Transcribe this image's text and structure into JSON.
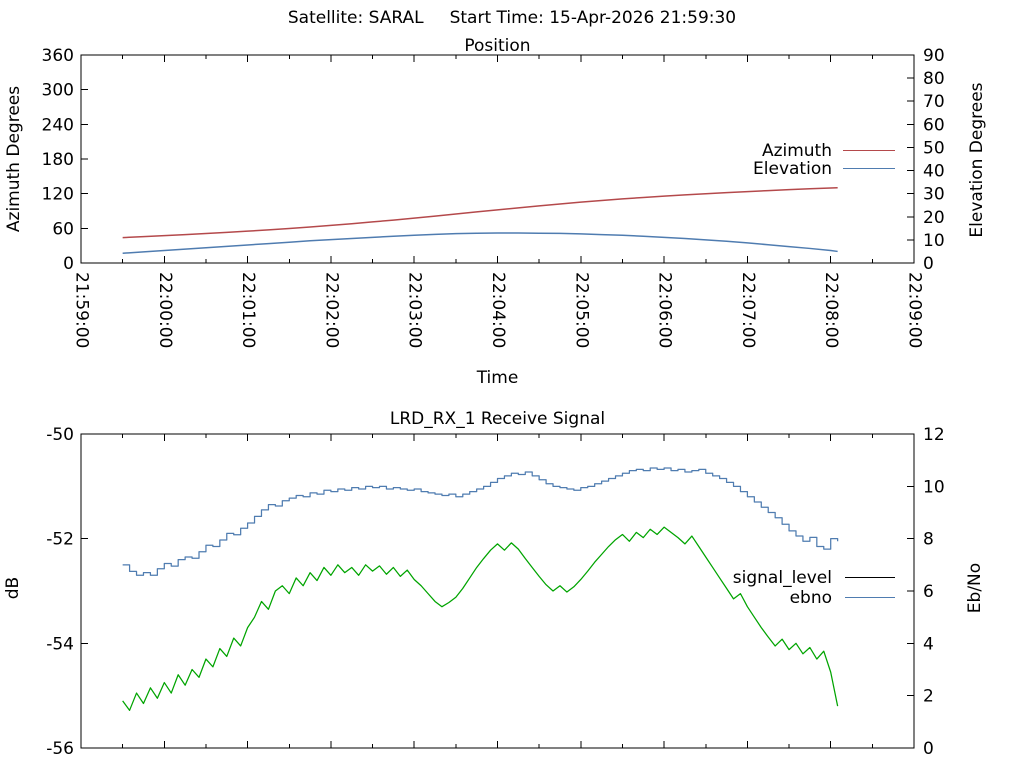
{
  "header": {
    "satellite": "Satellite: SARAL",
    "start_time": "Start Time: 15-Apr-2026 21:59:30"
  },
  "colors": {
    "azimuth": "#b4494b",
    "elevation": "#4f7cb0",
    "signal_level": "#00a400",
    "signal_level_legend": "#000000",
    "ebno": "#4f7cb0",
    "axis": "#000000"
  },
  "chart_data": [
    {
      "type": "line",
      "title": "Position",
      "xlabel": "Time",
      "ylabel": "Azimuth Degrees",
      "y2label": "Elevation Degrees",
      "x_unit": "seconds since 21:59:00",
      "xlim": [
        0,
        600
      ],
      "xtick_interval": 60,
      "xtick_labels": [
        "21:59:00",
        "22:00:00",
        "22:01:00",
        "22:02:00",
        "22:03:00",
        "22:04:00",
        "22:05:00",
        "22:06:00",
        "22:07:00",
        "22:08:00",
        "22:09:00"
      ],
      "show_xtick_labels": true,
      "ylim": [
        0,
        360
      ],
      "yticks": [
        0,
        60,
        120,
        180,
        240,
        300,
        360
      ],
      "y2lim": [
        0,
        90
      ],
      "y2ticks": [
        0,
        10,
        20,
        30,
        40,
        50,
        60,
        70,
        80,
        90
      ],
      "grid": false,
      "legend_position": "right-center",
      "legend_entries": [
        "Azimuth",
        "Elevation"
      ],
      "series": [
        {
          "name": "Azimuth",
          "axis": "y",
          "color_key": "azimuth",
          "style": "line",
          "x": [
            30,
            45,
            60,
            75,
            90,
            105,
            120,
            135,
            150,
            165,
            180,
            195,
            210,
            225,
            240,
            255,
            270,
            285,
            300,
            315,
            330,
            345,
            360,
            375,
            390,
            405,
            420,
            435,
            450,
            465,
            480,
            495,
            510,
            525,
            540,
            545
          ],
          "values": [
            44.0,
            45.6,
            47.3,
            49.1,
            51.0,
            53.0,
            55.1,
            57.4,
            59.8,
            62.4,
            65.1,
            68.0,
            71.1,
            74.3,
            77.7,
            81.2,
            84.8,
            88.4,
            92.0,
            95.5,
            98.9,
            102.2,
            105.3,
            108.2,
            110.9,
            113.4,
            115.7,
            117.9,
            119.9,
            121.8,
            123.6,
            125.3,
            126.9,
            128.4,
            129.8,
            130.3
          ]
        },
        {
          "name": "Elevation",
          "axis": "y2",
          "color_key": "elevation",
          "style": "line",
          "x": [
            30,
            45,
            60,
            75,
            90,
            105,
            120,
            135,
            150,
            165,
            180,
            195,
            210,
            225,
            240,
            255,
            270,
            285,
            300,
            315,
            330,
            345,
            360,
            375,
            390,
            405,
            420,
            435,
            450,
            465,
            480,
            495,
            510,
            525,
            540,
            545
          ],
          "values": [
            4.2,
            4.8,
            5.4,
            6.0,
            6.6,
            7.2,
            7.8,
            8.4,
            9.0,
            9.6,
            10.1,
            10.6,
            11.1,
            11.6,
            12.0,
            12.4,
            12.7,
            12.9,
            13.0,
            13.0,
            12.9,
            12.8,
            12.6,
            12.3,
            12.0,
            11.6,
            11.1,
            10.6,
            10.0,
            9.4,
            8.7,
            7.9,
            7.1,
            6.3,
            5.4,
            5.0
          ]
        }
      ]
    },
    {
      "type": "line",
      "title": "LRD_RX_1 Receive Signal",
      "xlabel": "",
      "ylabel": "dB",
      "y2label": "Eb/No",
      "x_unit": "seconds since 21:59:00",
      "xlim": [
        0,
        600
      ],
      "xtick_interval": 60,
      "xtick_labels": [],
      "show_xtick_labels": false,
      "ylim": [
        -56,
        -50
      ],
      "yticks": [
        -50,
        -52,
        -54,
        -56
      ],
      "y2lim": [
        0,
        12
      ],
      "y2ticks": [
        0,
        2,
        4,
        6,
        8,
        10,
        12
      ],
      "grid": false,
      "legend_position": "right-center",
      "legend_entries": [
        "signal_level",
        "ebno"
      ],
      "series": [
        {
          "name": "signal_level",
          "axis": "y",
          "color_key": "signal_level",
          "legend_color_key": "signal_level_legend",
          "style": "line",
          "x": {
            "start": 30,
            "step": 5
          },
          "values": [
            -55.1,
            -55.28,
            -54.95,
            -55.15,
            -54.85,
            -55.05,
            -54.75,
            -54.95,
            -54.6,
            -54.8,
            -54.5,
            -54.65,
            -54.3,
            -54.45,
            -54.1,
            -54.25,
            -53.9,
            -54.05,
            -53.7,
            -53.5,
            -53.2,
            -53.35,
            -53.0,
            -52.9,
            -53.05,
            -52.75,
            -52.9,
            -52.65,
            -52.8,
            -52.55,
            -52.7,
            -52.5,
            -52.65,
            -52.55,
            -52.7,
            -52.5,
            -52.62,
            -52.52,
            -52.68,
            -52.55,
            -52.72,
            -52.6,
            -52.78,
            -52.9,
            -53.05,
            -53.2,
            -53.3,
            -53.22,
            -53.12,
            -52.95,
            -52.75,
            -52.55,
            -52.38,
            -52.22,
            -52.1,
            -52.22,
            -52.08,
            -52.2,
            -52.38,
            -52.55,
            -52.72,
            -52.88,
            -53.0,
            -52.9,
            -53.02,
            -52.92,
            -52.78,
            -52.62,
            -52.45,
            -52.3,
            -52.15,
            -52.02,
            -51.92,
            -52.05,
            -51.88,
            -51.98,
            -51.82,
            -51.92,
            -51.78,
            -51.88,
            -51.98,
            -52.1,
            -51.95,
            -52.15,
            -52.35,
            -52.55,
            -52.75,
            -52.95,
            -53.15,
            -53.05,
            -53.3,
            -53.5,
            -53.7,
            -53.88,
            -54.05,
            -53.92,
            -54.12,
            -54.0,
            -54.2,
            -54.08,
            -54.3,
            -54.15,
            -54.55,
            -55.2
          ]
        },
        {
          "name": "ebno",
          "axis": "y2",
          "color_key": "ebno",
          "style": "steps",
          "x": {
            "start": 30,
            "step": 5
          },
          "values": [
            7.0,
            6.75,
            6.6,
            6.7,
            6.6,
            6.85,
            7.05,
            6.95,
            7.2,
            7.3,
            7.25,
            7.5,
            7.75,
            7.7,
            7.95,
            8.2,
            8.15,
            8.4,
            8.6,
            8.85,
            9.1,
            9.3,
            9.25,
            9.45,
            9.55,
            9.65,
            9.6,
            9.75,
            9.7,
            9.85,
            9.8,
            9.9,
            9.85,
            9.95,
            9.9,
            10.0,
            9.95,
            10.0,
            9.9,
            9.95,
            9.9,
            9.85,
            9.9,
            9.8,
            9.75,
            9.7,
            9.65,
            9.7,
            9.6,
            9.7,
            9.8,
            9.9,
            10.0,
            10.15,
            10.3,
            10.4,
            10.5,
            10.45,
            10.55,
            10.4,
            10.25,
            10.1,
            10.0,
            9.95,
            9.9,
            9.85,
            9.95,
            10.0,
            10.1,
            10.2,
            10.3,
            10.4,
            10.5,
            10.6,
            10.65,
            10.6,
            10.7,
            10.65,
            10.7,
            10.6,
            10.65,
            10.55,
            10.6,
            10.65,
            10.5,
            10.4,
            10.3,
            10.15,
            10.0,
            9.8,
            9.6,
            9.4,
            9.2,
            9.0,
            8.8,
            8.55,
            8.3,
            8.1,
            7.9,
            8.05,
            7.7,
            7.6,
            8.0,
            7.9
          ]
        }
      ]
    }
  ]
}
